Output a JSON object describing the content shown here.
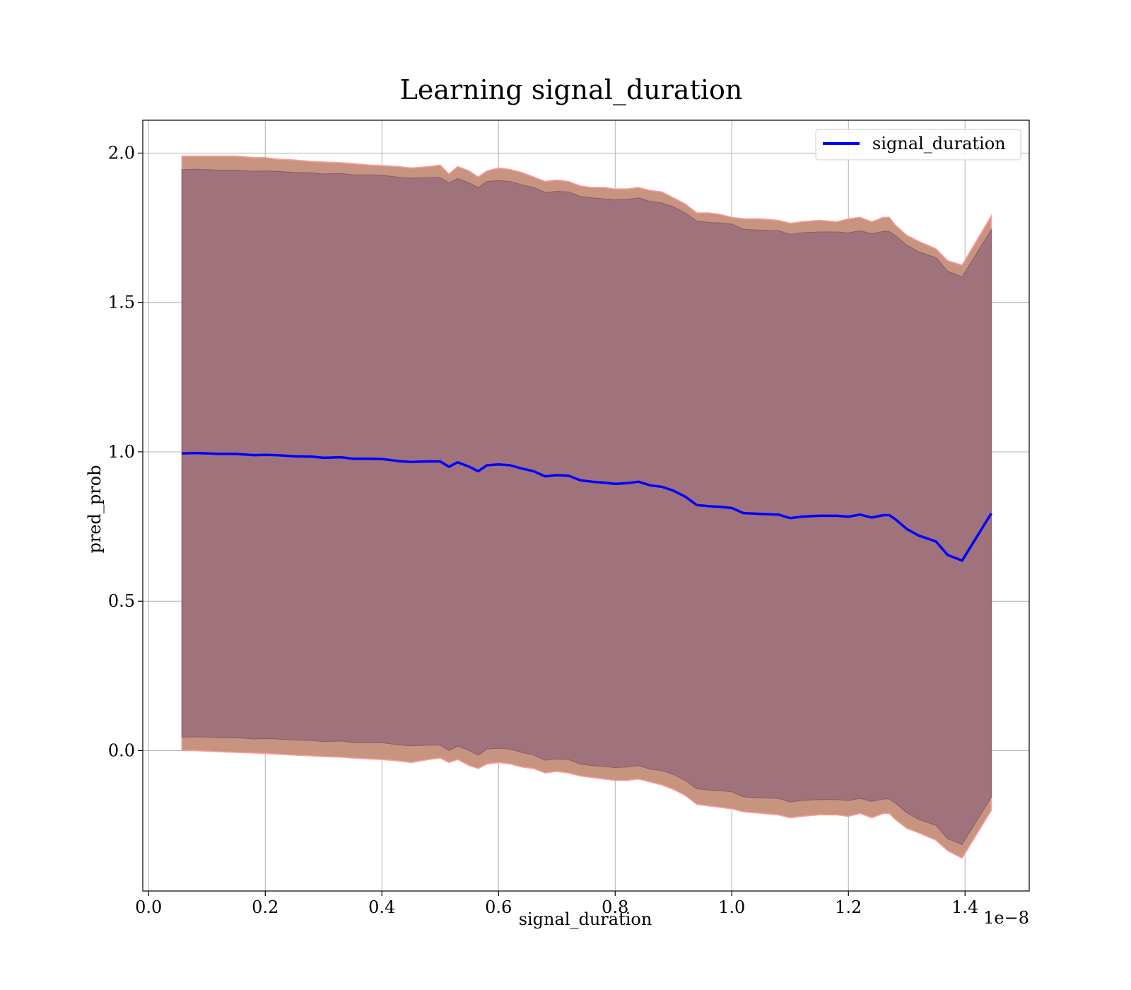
{
  "chart_data": {
    "type": "area",
    "title": "Learning signal_duration",
    "xlabel": "signal_duration",
    "ylabel": "pred_prob",
    "x_offset_text": "1e−8",
    "xlim": [
      -0.01,
      1.51
    ],
    "ylim": [
      -0.47,
      2.11
    ],
    "x_ticks": [
      0.0,
      0.2,
      0.4,
      0.6,
      0.8,
      1.0,
      1.2,
      1.4
    ],
    "x_tick_labels": [
      "0.0",
      "0.2",
      "0.4",
      "0.6",
      "0.8",
      "1.0",
      "1.2",
      "1.4"
    ],
    "y_ticks": [
      0.0,
      0.5,
      1.0,
      1.5,
      2.0
    ],
    "y_tick_labels": [
      "0.0",
      "0.5",
      "1.0",
      "1.5",
      "2.0"
    ],
    "grid": true,
    "legend_position": "upper-right",
    "legend": [
      "signal_duration"
    ],
    "colors": {
      "line": "#0000ff",
      "outer_band_fill": "#c79480",
      "outer_band_edge": "#ff9c9c",
      "inner_band_fill": "#a0727b",
      "inner_band_edge": "#8a5a6e",
      "grid": "#b0b0b0"
    },
    "series": [
      {
        "name": "signal_duration",
        "role": "line",
        "x": [
          0.057,
          0.08,
          0.1,
          0.12,
          0.15,
          0.18,
          0.2,
          0.22,
          0.25,
          0.28,
          0.3,
          0.33,
          0.35,
          0.38,
          0.4,
          0.43,
          0.45,
          0.48,
          0.5,
          0.515,
          0.53,
          0.55,
          0.565,
          0.58,
          0.6,
          0.62,
          0.64,
          0.66,
          0.68,
          0.7,
          0.72,
          0.74,
          0.76,
          0.78,
          0.8,
          0.82,
          0.84,
          0.86,
          0.88,
          0.9,
          0.92,
          0.94,
          0.96,
          0.98,
          1.0,
          1.02,
          1.05,
          1.08,
          1.1,
          1.12,
          1.15,
          1.18,
          1.2,
          1.22,
          1.24,
          1.26,
          1.27,
          1.28,
          1.3,
          1.32,
          1.35,
          1.37,
          1.395,
          1.445
        ],
        "y": [
          0.995,
          0.996,
          0.995,
          0.993,
          0.993,
          0.989,
          0.99,
          0.989,
          0.985,
          0.984,
          0.98,
          0.982,
          0.977,
          0.977,
          0.976,
          0.969,
          0.966,
          0.968,
          0.968,
          0.95,
          0.965,
          0.95,
          0.935,
          0.955,
          0.958,
          0.955,
          0.944,
          0.935,
          0.918,
          0.922,
          0.92,
          0.905,
          0.9,
          0.897,
          0.893,
          0.895,
          0.9,
          0.888,
          0.883,
          0.87,
          0.85,
          0.822,
          0.818,
          0.816,
          0.812,
          0.795,
          0.792,
          0.79,
          0.778,
          0.783,
          0.786,
          0.786,
          0.783,
          0.79,
          0.78,
          0.788,
          0.788,
          0.775,
          0.742,
          0.72,
          0.7,
          0.655,
          0.636,
          0.794
        ]
      },
      {
        "name": "outer band",
        "role": "band",
        "x": [
          0.057,
          0.08,
          0.1,
          0.12,
          0.15,
          0.18,
          0.2,
          0.22,
          0.25,
          0.28,
          0.3,
          0.33,
          0.35,
          0.38,
          0.4,
          0.43,
          0.45,
          0.48,
          0.5,
          0.515,
          0.53,
          0.55,
          0.565,
          0.58,
          0.6,
          0.62,
          0.64,
          0.66,
          0.68,
          0.7,
          0.72,
          0.74,
          0.76,
          0.78,
          0.8,
          0.82,
          0.84,
          0.86,
          0.88,
          0.9,
          0.92,
          0.94,
          0.96,
          0.98,
          1.0,
          1.02,
          1.05,
          1.08,
          1.1,
          1.12,
          1.15,
          1.18,
          1.2,
          1.22,
          1.24,
          1.26,
          1.27,
          1.28,
          1.3,
          1.32,
          1.35,
          1.37,
          1.395,
          1.445
        ],
        "upper": [
          1.99,
          1.99,
          1.99,
          1.99,
          1.99,
          1.985,
          1.985,
          1.98,
          1.977,
          1.972,
          1.97,
          1.968,
          1.965,
          1.96,
          1.958,
          1.955,
          1.95,
          1.955,
          1.96,
          1.93,
          1.955,
          1.94,
          1.92,
          1.94,
          1.95,
          1.945,
          1.935,
          1.92,
          1.905,
          1.91,
          1.905,
          1.89,
          1.885,
          1.885,
          1.88,
          1.88,
          1.885,
          1.875,
          1.87,
          1.85,
          1.83,
          1.8,
          1.8,
          1.795,
          1.785,
          1.78,
          1.78,
          1.775,
          1.765,
          1.77,
          1.775,
          1.77,
          1.78,
          1.785,
          1.77,
          1.785,
          1.785,
          1.76,
          1.725,
          1.705,
          1.68,
          1.64,
          1.625,
          1.79
        ],
        "lower": [
          0.0,
          0.0,
          -0.002,
          -0.004,
          -0.006,
          -0.008,
          -0.01,
          -0.012,
          -0.015,
          -0.018,
          -0.02,
          -0.022,
          -0.025,
          -0.028,
          -0.03,
          -0.035,
          -0.04,
          -0.03,
          -0.025,
          -0.04,
          -0.03,
          -0.05,
          -0.06,
          -0.045,
          -0.04,
          -0.045,
          -0.055,
          -0.06,
          -0.075,
          -0.07,
          -0.075,
          -0.085,
          -0.09,
          -0.095,
          -0.1,
          -0.1,
          -0.095,
          -0.105,
          -0.115,
          -0.13,
          -0.15,
          -0.18,
          -0.185,
          -0.19,
          -0.195,
          -0.205,
          -0.21,
          -0.215,
          -0.225,
          -0.22,
          -0.215,
          -0.215,
          -0.22,
          -0.21,
          -0.225,
          -0.21,
          -0.21,
          -0.23,
          -0.26,
          -0.275,
          -0.3,
          -0.335,
          -0.36,
          -0.2
        ]
      },
      {
        "name": "inner band",
        "role": "band",
        "x": [
          0.057,
          0.08,
          0.1,
          0.12,
          0.15,
          0.18,
          0.2,
          0.22,
          0.25,
          0.28,
          0.3,
          0.33,
          0.35,
          0.38,
          0.4,
          0.43,
          0.45,
          0.48,
          0.5,
          0.515,
          0.53,
          0.55,
          0.565,
          0.58,
          0.6,
          0.62,
          0.64,
          0.66,
          0.68,
          0.7,
          0.72,
          0.74,
          0.76,
          0.78,
          0.8,
          0.82,
          0.84,
          0.86,
          0.88,
          0.9,
          0.92,
          0.94,
          0.96,
          0.98,
          1.0,
          1.02,
          1.05,
          1.08,
          1.1,
          1.12,
          1.15,
          1.18,
          1.2,
          1.22,
          1.24,
          1.26,
          1.27,
          1.28,
          1.3,
          1.32,
          1.35,
          1.37,
          1.395,
          1.445
        ],
        "upper": [
          1.945,
          1.946,
          1.945,
          1.943,
          1.943,
          1.939,
          1.94,
          1.939,
          1.935,
          1.934,
          1.93,
          1.932,
          1.927,
          1.927,
          1.926,
          1.919,
          1.916,
          1.918,
          1.918,
          1.9,
          1.915,
          1.9,
          1.885,
          1.905,
          1.908,
          1.905,
          1.894,
          1.885,
          1.868,
          1.872,
          1.87,
          1.855,
          1.85,
          1.847,
          1.843,
          1.845,
          1.85,
          1.838,
          1.833,
          1.82,
          1.8,
          1.772,
          1.768,
          1.766,
          1.762,
          1.745,
          1.742,
          1.74,
          1.728,
          1.733,
          1.736,
          1.736,
          1.733,
          1.74,
          1.73,
          1.738,
          1.738,
          1.725,
          1.692,
          1.67,
          1.65,
          1.605,
          1.586,
          1.744
        ],
        "lower": [
          0.045,
          0.046,
          0.045,
          0.043,
          0.043,
          0.039,
          0.04,
          0.039,
          0.035,
          0.034,
          0.03,
          0.032,
          0.027,
          0.027,
          0.026,
          0.019,
          0.016,
          0.018,
          0.018,
          0.0,
          0.015,
          0.0,
          -0.015,
          0.005,
          0.008,
          0.005,
          -0.006,
          -0.015,
          -0.032,
          -0.028,
          -0.03,
          -0.045,
          -0.05,
          -0.053,
          -0.057,
          -0.055,
          -0.05,
          -0.062,
          -0.067,
          -0.08,
          -0.1,
          -0.128,
          -0.132,
          -0.134,
          -0.138,
          -0.155,
          -0.158,
          -0.16,
          -0.172,
          -0.167,
          -0.164,
          -0.164,
          -0.167,
          -0.16,
          -0.17,
          -0.162,
          -0.162,
          -0.175,
          -0.208,
          -0.23,
          -0.25,
          -0.295,
          -0.314,
          -0.156
        ]
      }
    ]
  }
}
